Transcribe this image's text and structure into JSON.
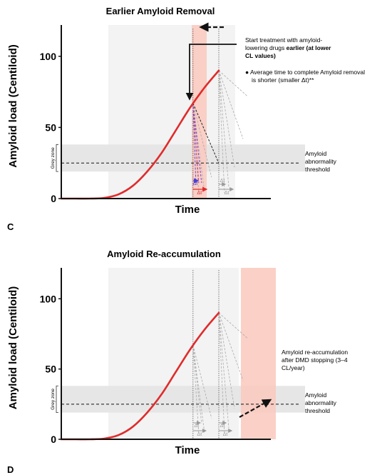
{
  "chart_data": [
    {
      "panel": "C",
      "type": "line",
      "title": "Earlier Amyloid Removal",
      "xlabel": "Time",
      "ylabel": "Amyloid load (Centiloid)",
      "yticks": [
        0,
        50,
        100
      ],
      "ylim": [
        0,
        122
      ],
      "grey_zone": {
        "label": "Grey zone",
        "y_range": [
          19,
          38
        ]
      },
      "threshold": {
        "y": 25,
        "label_lines": [
          "Amyloid",
          "abnormality",
          "threshold"
        ]
      },
      "series": [
        {
          "name": "",
          "x": [
            0,
            1,
            2,
            3,
            4,
            5,
            6,
            7,
            8,
            9,
            10,
            11
          ],
          "y": [
            0,
            0,
            0,
            0.5,
            3,
            9,
            19,
            32,
            48,
            64,
            78,
            90
          ]
        }
      ],
      "treatment_start_points": [
        {
          "x": 9.2,
          "y": 67
        },
        {
          "x": 11,
          "y": 90
        }
      ],
      "annotations": [
        {
          "text_lines": [
            [
              "Start treatment with amyloid-"
            ],
            [
              "lowering drugs ",
              "earlier (at lower"
            ],
            [
              "CL values)"
            ]
          ],
          "bold_from": "earlier (at lower"
        },
        {
          "text_lines": [
            "● Average time to complete Amyloid removal",
            "is shorter (smaller Δt)**"
          ]
        }
      ],
      "delta_label": "Δt"
    },
    {
      "panel": "D",
      "type": "line",
      "title": "Amyloid Re-accumulation",
      "xlabel": "Time",
      "ylabel": "Amyloid load (Centiloid)",
      "yticks": [
        0,
        50,
        100
      ],
      "ylim": [
        0,
        122
      ],
      "grey_zone": {
        "label": "Grey zone",
        "y_range": [
          19,
          38
        ]
      },
      "threshold": {
        "y": 25,
        "label_lines": [
          "Amyloid",
          "abnormality",
          "threshold"
        ]
      },
      "series": [
        {
          "name": "",
          "x": [
            0,
            1,
            2,
            3,
            4,
            5,
            6,
            7,
            8,
            9,
            10,
            11
          ],
          "y": [
            0,
            0,
            0,
            0.5,
            3,
            9,
            19,
            32,
            48,
            64,
            78,
            90
          ]
        }
      ],
      "annotations": [
        {
          "text_lines": [
            "Amyloid re-accumulation",
            "after DMD stopping (3–4",
            "CL/year)"
          ]
        }
      ],
      "delta_label": "Δt"
    }
  ],
  "colors": {
    "curve": "#e02b2b",
    "highlight": "#f9c8bd",
    "grey_band": "#e6e6e6",
    "background_band": "#f3f3f3",
    "blue": "#4b3fd6"
  }
}
